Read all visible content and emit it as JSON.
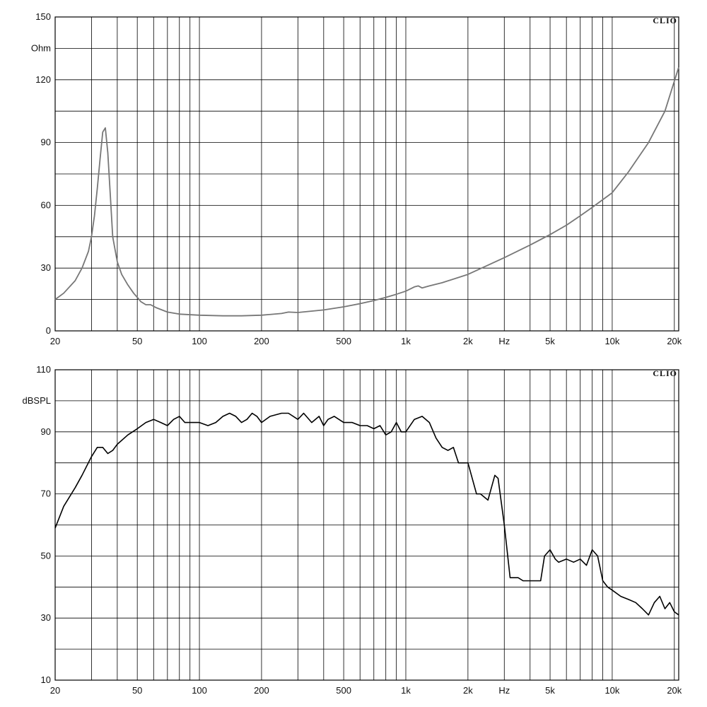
{
  "chart_data": [
    {
      "type": "line",
      "xscale": "log",
      "xlim": [
        20,
        21000
      ],
      "ylim": [
        0,
        150
      ],
      "y_unit_label": "Ohm",
      "brand": "CLIO",
      "x_ticks": [
        20,
        50,
        100,
        200,
        500,
        1000,
        2000,
        5000,
        10000,
        20000
      ],
      "x_tick_labels": [
        "20",
        "50",
        "100",
        "200",
        "500",
        "1k",
        "2k",
        "5k",
        "10k",
        "20k"
      ],
      "x_unit_label": "Hz",
      "x_unit_at": 3000,
      "y_ticks": [
        0,
        30,
        60,
        90,
        120,
        150
      ],
      "y_tick_labels": [
        "0",
        "30",
        "60",
        "90",
        "120",
        "150"
      ],
      "grid": true,
      "line_color": "#777777",
      "series": [
        {
          "x": [
            20,
            22,
            25,
            27,
            29,
            30,
            31,
            32,
            33,
            34,
            35,
            36,
            37,
            38,
            40,
            42,
            45,
            48,
            50,
            52,
            55,
            58,
            62,
            70,
            80,
            100,
            130,
            160,
            200,
            250,
            270,
            300,
            400,
            500,
            600,
            700,
            800,
            900,
            1000,
            1100,
            1150,
            1200,
            1300,
            1500,
            2000,
            3000,
            4000,
            5000,
            6000,
            7000,
            8000,
            10000,
            12000,
            15000,
            18000,
            21000
          ],
          "y": [
            15,
            18,
            24,
            30,
            38,
            45,
            55,
            68,
            82,
            95,
            97,
            85,
            65,
            45,
            33,
            27,
            22,
            18,
            16,
            14,
            12.5,
            12.5,
            11,
            9,
            8,
            7.5,
            7.2,
            7.2,
            7.5,
            8.3,
            9,
            8.8,
            10,
            11.5,
            13,
            14.5,
            16,
            17.5,
            19,
            21,
            21.5,
            20.5,
            21.5,
            23,
            27,
            35,
            41,
            46,
            50.5,
            55,
            59,
            66,
            76,
            90,
            105,
            126
          ]
        }
      ]
    },
    {
      "type": "line",
      "xscale": "log",
      "xlim": [
        20,
        21000
      ],
      "ylim": [
        10,
        110
      ],
      "y_unit_label": "dBSPL",
      "brand": "CLIO",
      "x_ticks": [
        20,
        50,
        100,
        200,
        500,
        1000,
        2000,
        5000,
        10000,
        20000
      ],
      "x_tick_labels": [
        "20",
        "50",
        "100",
        "200",
        "500",
        "1k",
        "2k",
        "5k",
        "10k",
        "20k"
      ],
      "x_unit_label": "Hz",
      "x_unit_at": 3000,
      "y_ticks": [
        10,
        30,
        50,
        70,
        90,
        110
      ],
      "y_tick_labels": [
        "10",
        "30",
        "50",
        "70",
        "90",
        "110"
      ],
      "grid": true,
      "line_color": "#000000",
      "series": [
        {
          "x": [
            20,
            22,
            25,
            27,
            30,
            32,
            34,
            36,
            38,
            40,
            45,
            50,
            55,
            60,
            65,
            70,
            75,
            80,
            85,
            90,
            100,
            110,
            120,
            130,
            140,
            150,
            160,
            170,
            180,
            190,
            200,
            220,
            250,
            270,
            300,
            320,
            350,
            380,
            400,
            420,
            450,
            500,
            550,
            600,
            650,
            700,
            750,
            800,
            850,
            900,
            950,
            1000,
            1100,
            1200,
            1300,
            1400,
            1500,
            1600,
            1700,
            1800,
            1900,
            2000,
            2200,
            2300,
            2500,
            2700,
            2800,
            3000,
            3200,
            3500,
            3700,
            4000,
            4500,
            4700,
            5000,
            5300,
            5500,
            6000,
            6500,
            7000,
            7500,
            8000,
            8500,
            9000,
            9500,
            10000,
            11000,
            12000,
            13000,
            14000,
            15000,
            16000,
            17000,
            18000,
            19000,
            20000,
            21000
          ],
          "y": [
            59,
            66,
            72,
            76,
            82,
            85,
            85,
            83,
            84,
            86,
            89,
            91,
            93,
            94,
            93,
            92,
            94,
            95,
            93,
            93,
            93,
            92,
            93,
            95,
            96,
            95,
            93,
            94,
            96,
            95,
            93,
            95,
            96,
            96,
            94,
            96,
            93,
            95,
            92,
            94,
            95,
            93,
            93,
            92,
            92,
            91,
            92,
            89,
            90,
            93,
            90,
            90,
            94,
            95,
            93,
            88,
            85,
            84,
            85,
            80,
            80,
            80,
            70,
            70,
            68,
            76,
            75,
            60,
            43,
            43,
            42,
            42,
            42,
            50,
            52,
            49,
            48,
            49,
            48,
            49,
            47,
            52,
            50,
            42,
            40,
            39,
            37,
            36,
            35,
            33,
            31,
            35,
            37,
            33,
            35,
            32,
            31
          ]
        }
      ]
    }
  ]
}
